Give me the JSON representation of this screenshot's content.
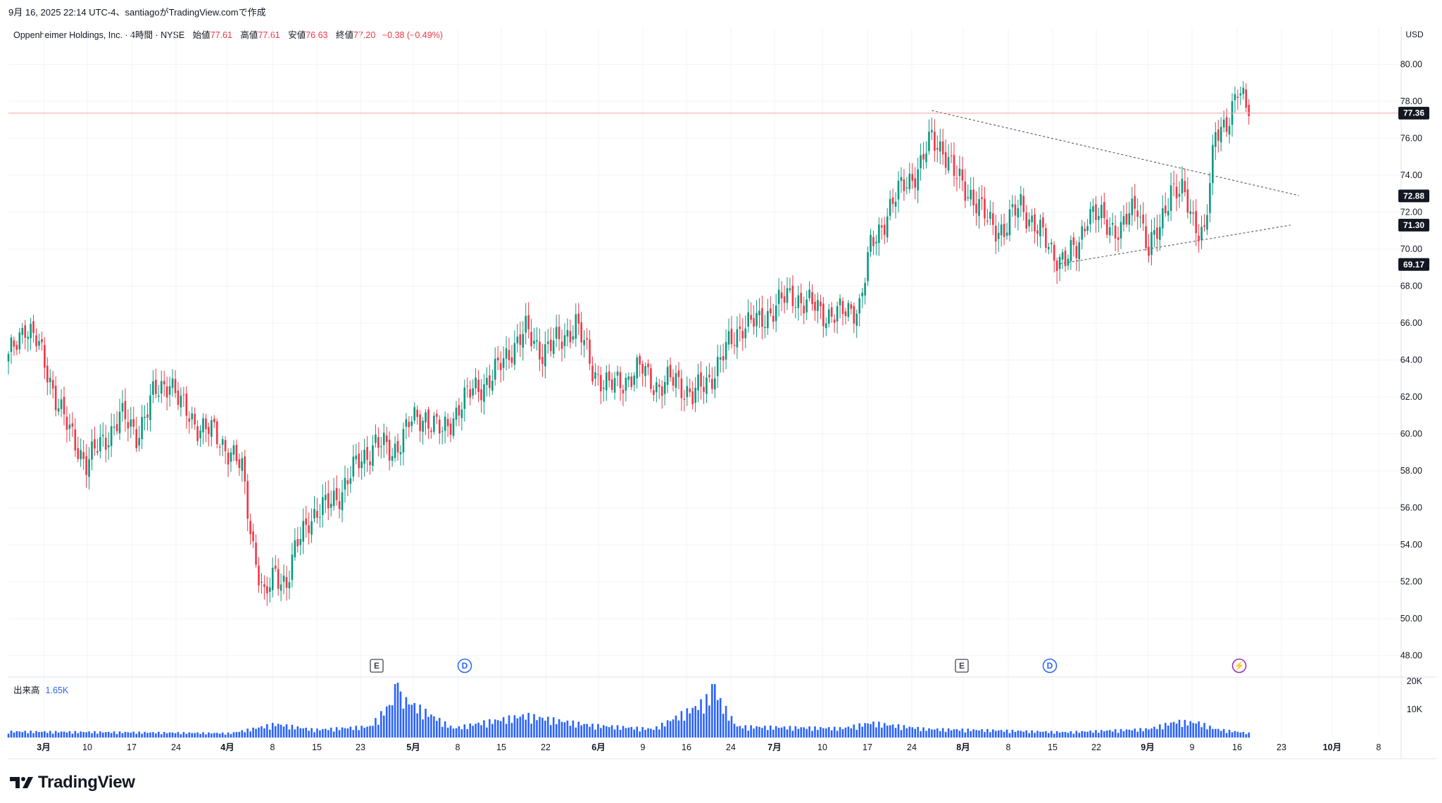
{
  "header": {
    "stamp": "9月 16, 2025 22:14 UTC-4、santiagoがTradingView.comで作成",
    "symbol": "Oppenheimer Holdings, Inc. · 4時間 · NYSE",
    "open_label": "始値",
    "open_value": "77.61",
    "high_label": "高値",
    "high_value": "77.61",
    "low_label": "安値",
    "low_value": "76.63",
    "close_label": "終値",
    "close_value": "77.20",
    "change": "−0.38 (−0.49%)",
    "currency": "USD"
  },
  "volume_legend": {
    "label": "出来高",
    "value": "1.65K"
  },
  "brand": {
    "name": "TradingView"
  },
  "colors": {
    "up": "#089981",
    "down": "#f23645",
    "volume": "#2962ff",
    "event_d": "#2962ff",
    "event_flash": "#9c27b0"
  },
  "chart_data": {
    "type": "candlestick",
    "price_axis": {
      "ylim": [
        47,
        81.5
      ],
      "ticks": [
        "80.00",
        "78.00",
        "76.00",
        "74.00",
        "72.00",
        "70.00",
        "68.00",
        "66.00",
        "64.00",
        "62.00",
        "60.00",
        "58.00",
        "56.00",
        "54.00",
        "52.00",
        "50.00",
        "48.00"
      ]
    },
    "price_badges": [
      "77.36",
      "72.88",
      "71.30",
      "69.17"
    ],
    "current_price": 77.2,
    "volume_axis": {
      "ticks": [
        "20K",
        "10K"
      ],
      "max": 20000
    },
    "x_labels": [
      "3月",
      "10",
      "17",
      "24",
      "4月",
      "8",
      "15",
      "23",
      "5月",
      "8",
      "15",
      "22",
      "6月",
      "9",
      "16",
      "24",
      "7月",
      "10",
      "17",
      "24",
      "8月",
      "8",
      "15",
      "22",
      "9月",
      "9",
      "16",
      "23",
      "10月",
      "8"
    ],
    "month_labels": [
      "3月",
      "4月",
      "5月",
      "6月",
      "7月",
      "8月",
      "9月",
      "10月"
    ],
    "events": [
      {
        "type": "E",
        "label": "E"
      },
      {
        "type": "D",
        "label": "D"
      },
      {
        "type": "E",
        "label": "E"
      },
      {
        "type": "D",
        "label": "D"
      },
      {
        "type": "split",
        "label": "⚡"
      }
    ],
    "trendlines": [
      {
        "from": [
          332,
          77.5
        ],
        "to": [
          464,
          72.9
        ]
      },
      {
        "from": [
          378,
          69.2
        ],
        "to": [
          461,
          71.3
        ]
      }
    ],
    "anchors": [
      [
        0,
        64.0
      ],
      [
        6,
        66.0
      ],
      [
        10,
        65.0
      ],
      [
        16,
        62.5
      ],
      [
        22,
        60.0
      ],
      [
        28,
        58.5
      ],
      [
        34,
        59.5
      ],
      [
        40,
        61.0
      ],
      [
        46,
        60.0
      ],
      [
        52,
        62.0
      ],
      [
        58,
        63.0
      ],
      [
        62,
        61.5
      ],
      [
        68,
        60.5
      ],
      [
        74,
        60.0
      ],
      [
        80,
        59.0
      ],
      [
        84,
        58.0
      ],
      [
        88,
        54.0
      ],
      [
        92,
        51.0
      ],
      [
        96,
        52.5
      ],
      [
        100,
        52.0
      ],
      [
        104,
        54.0
      ],
      [
        108,
        55.5
      ],
      [
        114,
        56.0
      ],
      [
        120,
        57.0
      ],
      [
        126,
        58.5
      ],
      [
        132,
        59.5
      ],
      [
        138,
        59.0
      ],
      [
        144,
        60.5
      ],
      [
        150,
        61.0
      ],
      [
        156,
        60.0
      ],
      [
        162,
        61.5
      ],
      [
        168,
        62.5
      ],
      [
        174,
        63.0
      ],
      [
        180,
        64.5
      ],
      [
        186,
        65.5
      ],
      [
        192,
        64.5
      ],
      [
        198,
        65.0
      ],
      [
        204,
        66.0
      ],
      [
        210,
        63.5
      ],
      [
        216,
        62.5
      ],
      [
        222,
        63.0
      ],
      [
        228,
        63.5
      ],
      [
        234,
        62.5
      ],
      [
        240,
        63.0
      ],
      [
        246,
        62.0
      ],
      [
        252,
        63.0
      ],
      [
        258,
        64.5
      ],
      [
        264,
        66.0
      ],
      [
        270,
        66.0
      ],
      [
        276,
        67.0
      ],
      [
        282,
        67.5
      ],
      [
        288,
        67.0
      ],
      [
        294,
        66.5
      ],
      [
        300,
        66.5
      ],
      [
        306,
        67.0
      ],
      [
        310,
        70.0
      ],
      [
        316,
        72.0
      ],
      [
        322,
        73.5
      ],
      [
        328,
        74.5
      ],
      [
        332,
        76.0
      ],
      [
        336,
        75.5
      ],
      [
        340,
        74.0
      ],
      [
        346,
        73.0
      ],
      [
        352,
        71.5
      ],
      [
        358,
        71.0
      ],
      [
        364,
        72.5
      ],
      [
        370,
        71.0
      ],
      [
        376,
        69.8
      ],
      [
        380,
        69.3
      ],
      [
        384,
        70.0
      ],
      [
        388,
        72.0
      ],
      [
        394,
        71.5
      ],
      [
        400,
        71.0
      ],
      [
        406,
        72.5
      ],
      [
        410,
        70.0
      ],
      [
        414,
        71.0
      ],
      [
        418,
        73.5
      ],
      [
        422,
        73.0
      ],
      [
        426,
        71.5
      ],
      [
        430,
        71.0
      ],
      [
        434,
        76.0
      ],
      [
        438,
        77.0
      ],
      [
        442,
        78.5
      ],
      [
        446,
        77.2
      ]
    ],
    "volume_anchors": [
      [
        0,
        2500
      ],
      [
        40,
        2200
      ],
      [
        80,
        1800
      ],
      [
        96,
        5500
      ],
      [
        110,
        3200
      ],
      [
        130,
        4500
      ],
      [
        140,
        17000
      ],
      [
        160,
        3800
      ],
      [
        170,
        6000
      ],
      [
        186,
        9000
      ],
      [
        200,
        6500
      ],
      [
        210,
        5000
      ],
      [
        232,
        3500
      ],
      [
        248,
        13000
      ],
      [
        254,
        18000
      ],
      [
        262,
        4500
      ],
      [
        300,
        3800
      ],
      [
        310,
        6000
      ],
      [
        330,
        3500
      ],
      [
        354,
        3000
      ],
      [
        380,
        2200
      ],
      [
        410,
        3500
      ],
      [
        420,
        6500
      ],
      [
        428,
        6000
      ],
      [
        434,
        3500
      ],
      [
        447,
        1650
      ]
    ]
  }
}
